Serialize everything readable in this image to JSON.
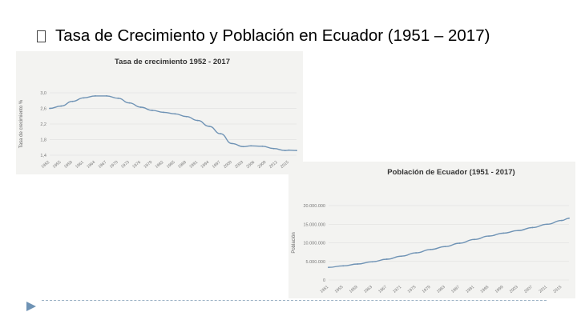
{
  "slide": {
    "bullet_icon": "square-bullet-icon",
    "title": "Tasa de Crecimiento y Población en Ecuador (1951 – 2017)",
    "accent_color": "#6f93b5"
  },
  "chart_data": [
    {
      "type": "line",
      "title": "Tasa de crecimiento 1952 - 2017",
      "xlabel": "",
      "ylabel": "Tasa de crecimiento %",
      "ylim": [
        1.4,
        3.0
      ],
      "yticks": [
        "3,0",
        "2,6",
        "2,2",
        "1,8",
        "1,4"
      ],
      "xticks": [
        "1952",
        "1955",
        "1958",
        "1961",
        "1964",
        "1967",
        "1970",
        "1973",
        "1976",
        "1979",
        "1982",
        "1985",
        "1988",
        "1991",
        "1994",
        "1997",
        "2000",
        "2003",
        "2006",
        "2009",
        "2012",
        "2015"
      ],
      "grid": true,
      "legend": "none",
      "series": [
        {
          "color": "#6f93b5",
          "x": [
            1952,
            1955,
            1958,
            1961,
            1964,
            1967,
            1970,
            1973,
            1976,
            1979,
            1982,
            1985,
            1988,
            1991,
            1994,
            1997,
            2000,
            2003,
            2005,
            2008,
            2011,
            2014,
            2015,
            2017
          ],
          "values": [
            2.6,
            2.66,
            2.78,
            2.87,
            2.92,
            2.92,
            2.86,
            2.74,
            2.63,
            2.55,
            2.5,
            2.46,
            2.39,
            2.29,
            2.14,
            1.95,
            1.7,
            1.62,
            1.64,
            1.63,
            1.57,
            1.52,
            1.53,
            1.52
          ]
        }
      ]
    },
    {
      "type": "line",
      "title": "Población de Ecuador (1951 - 2017)",
      "xlabel": "",
      "ylabel": "Población",
      "ylim": [
        0,
        20000000
      ],
      "yticks": [
        "20.000.000",
        "15.000.000",
        "10.000.000",
        "5.000.000",
        "0"
      ],
      "xticks": [
        "1951",
        "1955",
        "1959",
        "1963",
        "1967",
        "1971",
        "1975",
        "1979",
        "1983",
        "1987",
        "1991",
        "1995",
        "1999",
        "2003",
        "2007",
        "2011",
        "2015"
      ],
      "grid": true,
      "legend": "none",
      "series": [
        {
          "color": "#6f93b5",
          "x": [
            1951,
            1955,
            1959,
            1963,
            1967,
            1971,
            1975,
            1979,
            1983,
            1987,
            1991,
            1995,
            1999,
            2003,
            2007,
            2011,
            2015,
            2017
          ],
          "values": [
            3400000,
            3800000,
            4300000,
            4900000,
            5600000,
            6400000,
            7300000,
            8200000,
            9000000,
            9900000,
            10900000,
            11800000,
            12600000,
            13300000,
            14100000,
            15000000,
            16000000,
            16600000
          ]
        }
      ]
    }
  ]
}
